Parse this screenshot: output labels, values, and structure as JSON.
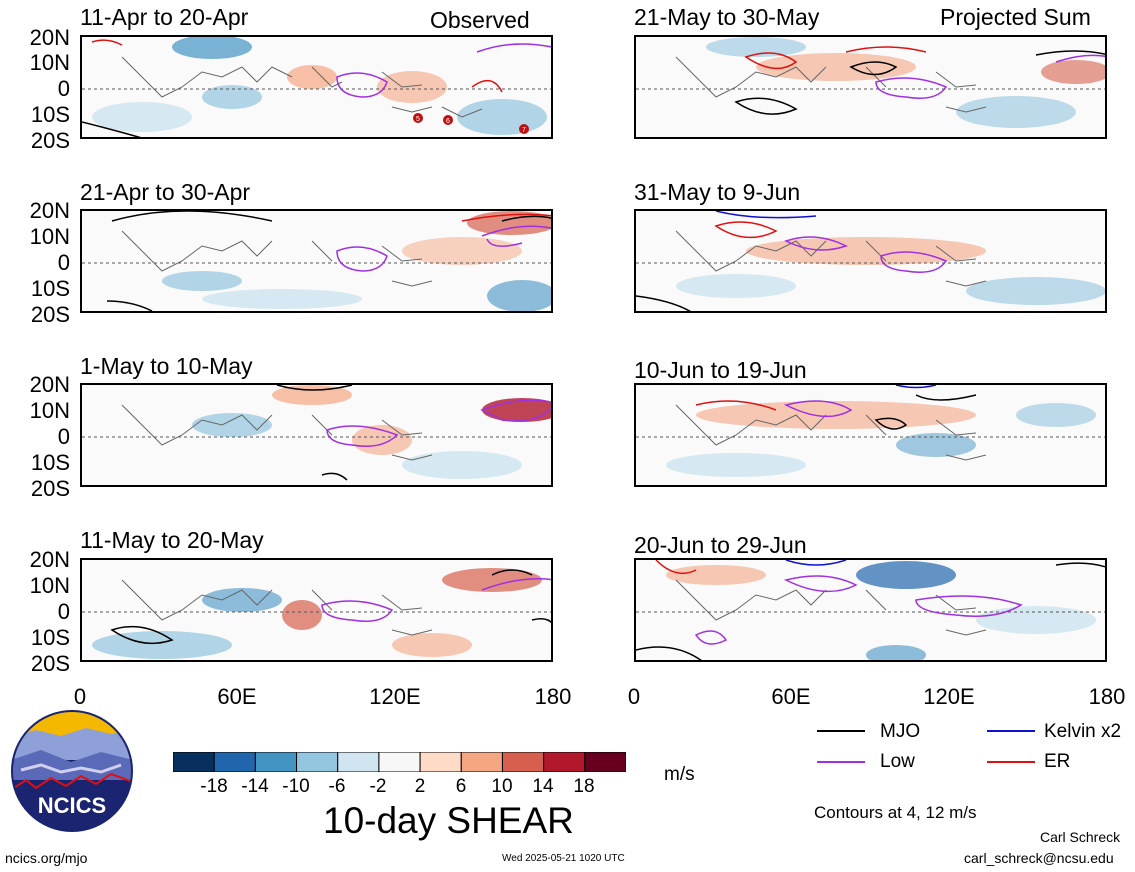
{
  "header": {
    "left_tag": "Observed",
    "right_tag": "Projected Sum"
  },
  "panels": {
    "left": [
      "11-Apr to 20-Apr",
      "21-Apr to 30-Apr",
      "1-May to 10-May",
      "11-May to 20-May"
    ],
    "right": [
      "21-May to 30-May",
      "31-May to 9-Jun",
      "10-Jun to 19-Jun",
      "20-Jun to 29-Jun"
    ]
  },
  "lat_labels": [
    "20N",
    "10N",
    "0",
    "10S",
    "20S"
  ],
  "lon_labels": [
    "0",
    "60E",
    "120E",
    "180"
  ],
  "legend": {
    "items": [
      {
        "label": "MJO",
        "color": "#000000"
      },
      {
        "label": "Kelvin x2",
        "color": "#1010d0"
      },
      {
        "label": "Low",
        "color": "#a030e0"
      },
      {
        "label": "ER",
        "color": "#e01010"
      }
    ],
    "contours": "Contours at 4, 12 m/s"
  },
  "colorbar": {
    "ticks": [
      "-18",
      "-14",
      "-10",
      "-6",
      "-2",
      "2",
      "6",
      "10",
      "14",
      "18"
    ],
    "colors": [
      "#08305e",
      "#2166ac",
      "#4393c3",
      "#92c5de",
      "#d1e5f0",
      "#f7f7f7",
      "#fddbc7",
      "#f4a582",
      "#d6604d",
      "#b2182b",
      "#67001f"
    ],
    "units": "m/s",
    "title": "10-day SHEAR"
  },
  "logo": {
    "text": "NCICS"
  },
  "footer": {
    "url": "ncics.org/mjo",
    "timestamp": "Wed 2025-05-21 1020 UTC",
    "author": "Carl Schreck",
    "email": "carl_schreck@ncsu.edu"
  },
  "storm_markers": [
    "5",
    "6",
    "7"
  ]
}
